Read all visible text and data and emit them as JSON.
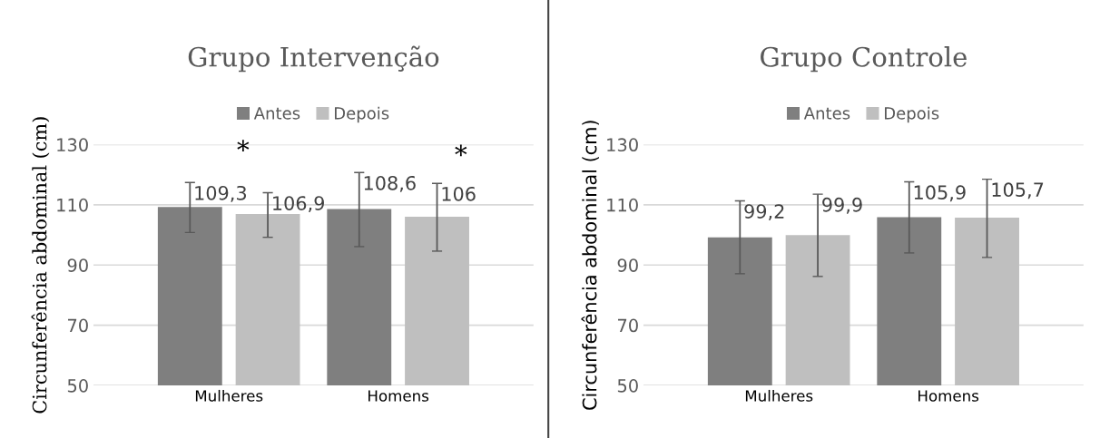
{
  "chart_data": [
    {
      "type": "bar",
      "title": "Grupo Intervenção",
      "ylabel": "Circunferência abdominal (cm)",
      "categories": [
        "Mulheres",
        "Homens"
      ],
      "ylim": [
        50,
        130
      ],
      "yticks": [
        50,
        70,
        90,
        110,
        130
      ],
      "grid": "y",
      "legend": "top",
      "series": [
        {
          "name": "Antes",
          "color": "#7f7f7f",
          "values": [
            109.3,
            108.6
          ],
          "errors": [
            [
              100.8,
              117.4
            ],
            [
              96.1,
              120.7
            ]
          ],
          "value_labels": [
            "109,3",
            "108,6"
          ]
        },
        {
          "name": "Depois",
          "color": "#bfbfbf",
          "values": [
            106.9,
            106
          ],
          "errors": [
            [
              99.2,
              114.0
            ],
            [
              94.6,
              117.1
            ]
          ],
          "value_labels": [
            "106,9",
            "106"
          ]
        }
      ],
      "annotations": [
        "*",
        "*"
      ]
    },
    {
      "type": "bar",
      "title": "Grupo Controle",
      "ylabel": "Circunferência abdominal (cm)",
      "categories": [
        "Mulheres",
        "Homens"
      ],
      "ylim": [
        50,
        130
      ],
      "yticks": [
        50,
        70,
        90,
        110,
        130
      ],
      "grid": "y",
      "legend": "top",
      "series": [
        {
          "name": "Antes",
          "color": "#7f7f7f",
          "values": [
            99.2,
            105.9
          ],
          "errors": [
            [
              87.1,
              111.3
            ],
            [
              94.0,
              117.6
            ]
          ],
          "value_labels": [
            "99,2",
            "105,9"
          ]
        },
        {
          "name": "Depois",
          "color": "#bfbfbf",
          "values": [
            99.9,
            105.7
          ],
          "errors": [
            [
              86.2,
              113.5
            ],
            [
              92.5,
              118.5
            ]
          ],
          "value_labels": [
            "99,9",
            "105,7"
          ]
        }
      ]
    }
  ]
}
